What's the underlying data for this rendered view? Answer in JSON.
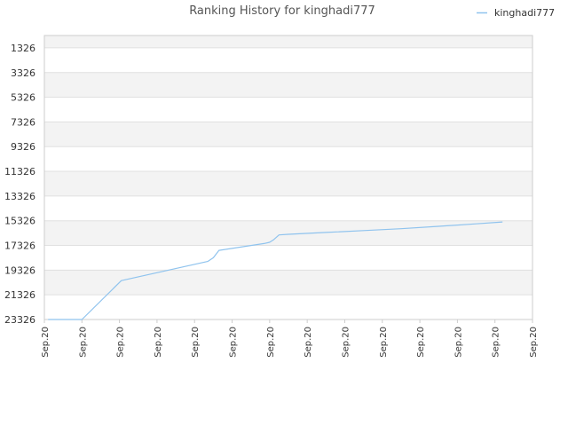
{
  "chart_data": {
    "type": "line",
    "title": "Ranking History for kinghadi777",
    "legend": {
      "position": "top-right"
    },
    "y_axis": {
      "reversed": true,
      "ylim": [
        325,
        23326
      ],
      "ticks": [
        "1326",
        "3326",
        "5326",
        "7326",
        "9326",
        "11326",
        "13326",
        "15326",
        "17326",
        "19326",
        "21326",
        "23326"
      ]
    },
    "x_axis": {
      "xlim": [
        0,
        13
      ],
      "ticks": [
        "Sep.20",
        "Sep.20",
        "Sep.20",
        "Sep.20",
        "Sep.20",
        "Sep.20",
        "Sep.20",
        "Sep.20",
        "Sep.20",
        "Sep.20",
        "Sep.20",
        "Sep.20",
        "Sep.20",
        "Sep.20"
      ]
    },
    "grid": true,
    "colors": {
      "series": "#8fc3ee",
      "band_light": "#f3f3f3",
      "band_white": "#ffffff",
      "grid": "#e0e0e0",
      "axis": "#cccccc"
    },
    "series": [
      {
        "name": "kinghadi777",
        "x": [
          0.1,
          1.0,
          2.05,
          4.35,
          4.5,
          4.65,
          5.85,
          6.0,
          6.1,
          6.25,
          6.5,
          7.5,
          8.5,
          9.5,
          10.5,
          11.5,
          12.2
        ],
        "y": [
          23326,
          23326,
          20176,
          18626,
          18326,
          17726,
          17176,
          17076,
          16876,
          16476,
          16426,
          16276,
          16126,
          15976,
          15776,
          15576,
          15426
        ]
      }
    ]
  }
}
